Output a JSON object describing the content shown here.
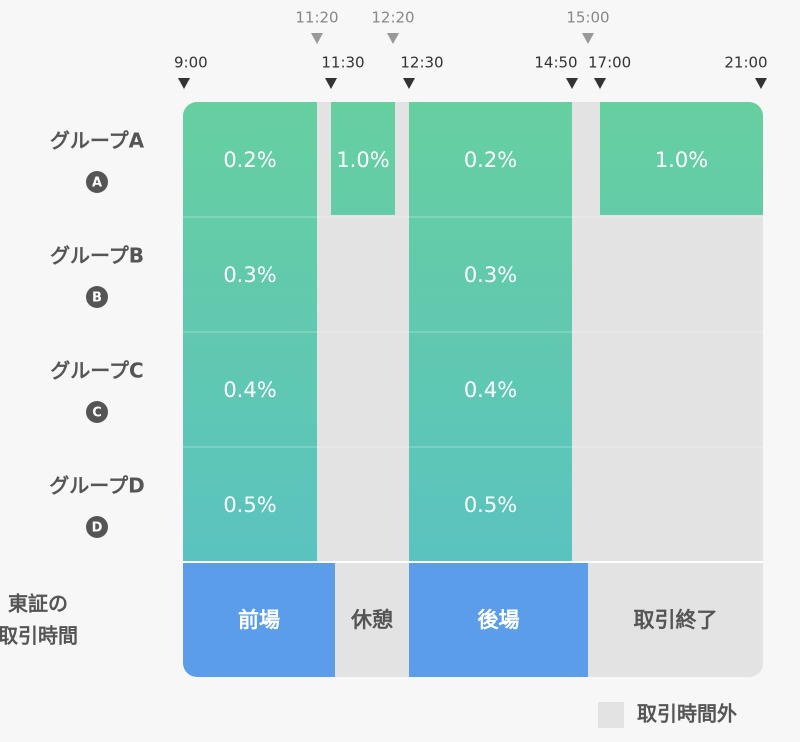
{
  "time_marks_top": [
    "11:20",
    "12:20",
    "15:00"
  ],
  "time_marks": [
    "9:00",
    "11:30",
    "12:30",
    "14:50",
    "17:00",
    "21:00"
  ],
  "groups": [
    {
      "label": "グループA",
      "badge": "A",
      "rates": [
        "0.2%",
        "1.0%",
        "0.2%",
        "1.0%"
      ]
    },
    {
      "label": "グループB",
      "badge": "B",
      "rates": [
        "0.3%",
        "0.3%"
      ]
    },
    {
      "label": "グループC",
      "badge": "C",
      "rates": [
        "0.4%",
        "0.4%"
      ]
    },
    {
      "label": "グループD",
      "badge": "D",
      "rates": [
        "0.5%",
        "0.5%"
      ]
    }
  ],
  "sessions": {
    "label": [
      "東証の",
      "取引時間"
    ],
    "blocks": [
      "前場",
      "休憩",
      "後場",
      "取引終了"
    ]
  },
  "legend": "取引時間外"
}
